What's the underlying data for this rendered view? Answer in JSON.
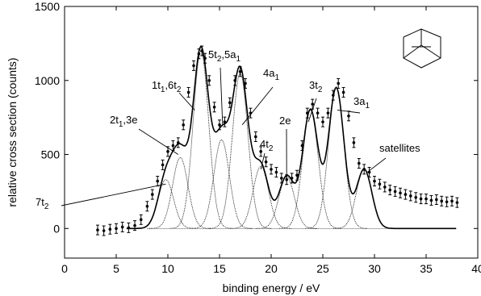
{
  "chart_data": {
    "type": "scatter",
    "xlabel": "binding energy / eV",
    "ylabel": "relative cross section (counts)",
    "xlim": [
      0,
      40
    ],
    "ylim": [
      -200,
      1500
    ],
    "x_ticks": [
      0,
      5,
      10,
      15,
      20,
      25,
      30,
      35,
      40
    ],
    "y_ticks": [
      0,
      500,
      1000,
      1500
    ],
    "grid": false,
    "series": [
      {
        "style": "points-with-error-bars",
        "x": [
          3.2,
          3.8,
          4.4,
          5.0,
          5.6,
          6.2,
          6.8,
          7.4,
          8.0,
          8.5,
          9.0,
          9.5,
          10.0,
          10.5,
          11.0,
          11.5,
          12.0,
          12.5,
          13.0,
          13.3,
          13.6,
          14.0,
          14.5,
          15.0,
          15.5,
          16.0,
          16.5,
          17.0,
          17.5,
          18.0,
          18.5,
          19.0,
          19.5,
          20.0,
          20.5,
          21.0,
          21.5,
          22.0,
          22.5,
          23.0,
          23.5,
          24.0,
          24.5,
          25.0,
          25.5,
          26.0,
          26.5,
          27.0,
          27.5,
          28.0,
          28.5,
          29.0,
          29.5,
          30.0,
          30.5,
          31.0,
          31.5,
          32.0,
          32.5,
          33.0,
          33.5,
          34.0,
          34.5,
          35.0,
          35.5,
          36.0,
          36.5,
          37.0,
          37.5,
          38.0
        ],
        "y": [
          -10,
          -15,
          -5,
          0,
          10,
          5,
          20,
          60,
          150,
          230,
          320,
          430,
          520,
          560,
          580,
          700,
          920,
          1100,
          1180,
          1200,
          1150,
          1000,
          820,
          700,
          720,
          850,
          1000,
          1060,
          980,
          780,
          620,
          520,
          450,
          400,
          380,
          340,
          330,
          340,
          360,
          560,
          780,
          840,
          780,
          720,
          780,
          900,
          980,
          920,
          760,
          580,
          440,
          400,
          380,
          320,
          300,
          280,
          260,
          250,
          240,
          230,
          220,
          210,
          200,
          200,
          190,
          195,
          185,
          180,
          185,
          175
        ]
      }
    ],
    "components": [
      {
        "center": 9.8,
        "height": 330
      },
      {
        "center": 11.2,
        "height": 480
      },
      {
        "center": 13.2,
        "height": 1200
      },
      {
        "center": 15.2,
        "height": 600
      },
      {
        "center": 17.0,
        "height": 1050
      },
      {
        "center": 19.0,
        "height": 420
      },
      {
        "center": 21.5,
        "height": 350
      },
      {
        "center": 23.8,
        "height": 800
      },
      {
        "center": 26.3,
        "height": 950
      },
      {
        "center": 29.0,
        "height": 400
      }
    ],
    "annotations": [
      {
        "main": "7t",
        "sub": "2",
        "tail": ""
      },
      {
        "main": "2t",
        "sub": "1",
        "tail": ",3e"
      },
      {
        "main": "1t",
        "sub": "1",
        "tail": ",6t",
        "sub2": "2"
      },
      {
        "main": "5t",
        "sub": "2",
        "tail": ",5a",
        "sub2": "1"
      },
      {
        "main": "4a",
        "sub": "1",
        "tail": ""
      },
      {
        "main": "4t",
        "sub": "2",
        "tail": ""
      },
      {
        "main": "2e",
        "sub": "",
        "tail": ""
      },
      {
        "main": "3t",
        "sub": "2",
        "tail": ""
      },
      {
        "main": "3a",
        "sub": "1",
        "tail": ""
      },
      {
        "main": "satellites",
        "sub": "",
        "tail": ""
      }
    ]
  }
}
